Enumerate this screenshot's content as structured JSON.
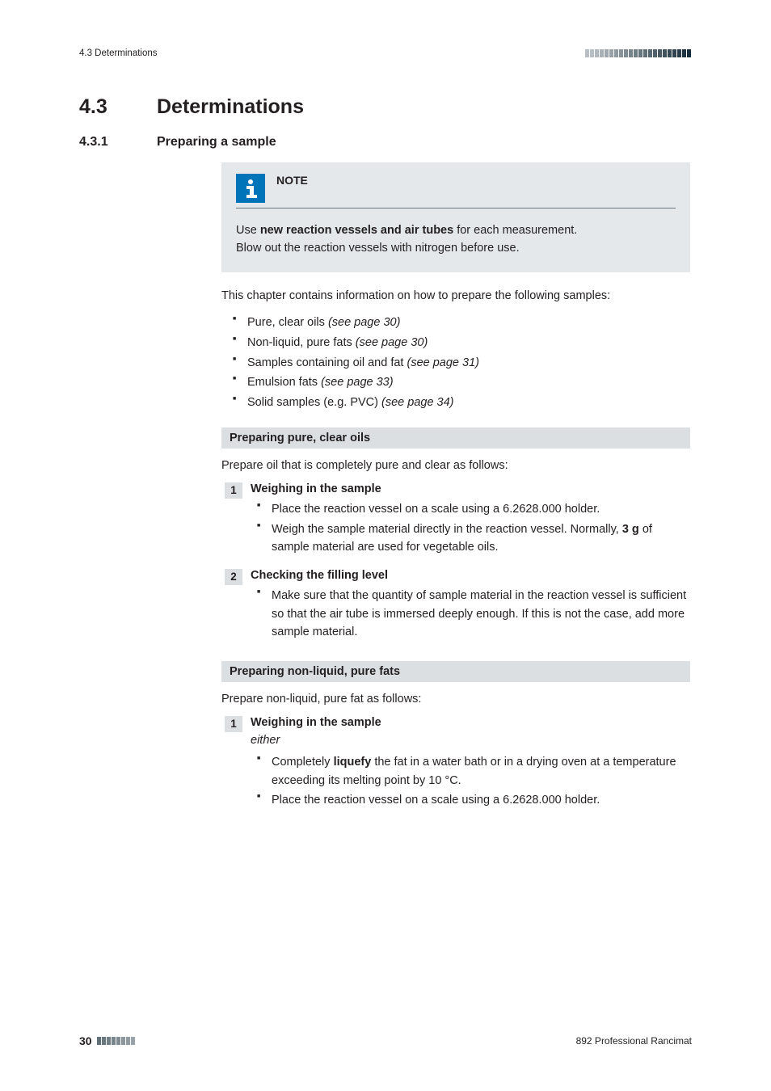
{
  "colors": {
    "text": "#231f20",
    "note_bg": "#e4e8ea",
    "note_icon_bg": "#0074b8",
    "subhead_bg": "#dcdfe2",
    "bar_gradient": [
      "#b8bfc4",
      "#b8bfc4",
      "#b0b8bd",
      "#a8b1b6",
      "#a0a9af",
      "#98a2a8",
      "#909ba1",
      "#88949a",
      "#808c93",
      "#78858d",
      "#707e86",
      "#68777f",
      "#606f78",
      "#586872",
      "#50616b",
      "#485964",
      "#40525e",
      "#384b57",
      "#304350",
      "#283c4a",
      "#203543",
      "#182d3c"
    ]
  },
  "header": {
    "running_left": "4.3 Determinations"
  },
  "h1": {
    "num": "4.3",
    "title": "Determinations"
  },
  "h2": {
    "num": "4.3.1",
    "title": "Preparing a sample"
  },
  "note": {
    "label": "NOTE",
    "line1_pre": "Use ",
    "line1_bold": "new reaction vessels and air tubes",
    "line1_post": " for each measurement.",
    "line2": "Blow out the reaction vessels with nitrogen before use."
  },
  "intro": "This chapter contains information on how to prepare the following samples:",
  "sample_list": [
    {
      "label": "Pure, clear oils ",
      "ref": "(see page 30)"
    },
    {
      "label": "Non-liquid, pure fats ",
      "ref": "(see page 30)"
    },
    {
      "label": "Samples containing oil and fat ",
      "ref": "(see page 31)"
    },
    {
      "label": "Emulsion fats ",
      "ref": "(see page 33)"
    },
    {
      "label": "Solid samples (e.g. PVC) ",
      "ref": "(see page 34)"
    }
  ],
  "section1": {
    "heading": "Preparing pure, clear oils",
    "intro": "Prepare oil that is completely pure and clear as follows:",
    "steps": [
      {
        "num": "1",
        "title": "Weighing in the sample",
        "items": [
          {
            "text": "Place the reaction vessel on a scale using a 6.2628.000 holder."
          },
          {
            "text_pre": "Weigh the sample material directly in the reaction vessel. Normally, ",
            "bold": "3 g",
            "text_post": " of sample material are used for vegetable oils."
          }
        ]
      },
      {
        "num": "2",
        "title": "Checking the filling level",
        "items": [
          {
            "text": "Make sure that the quantity of sample material in the reaction vessel is sufficient so that the air tube is immersed deeply enough. If this is not the case, add more sample material."
          }
        ]
      }
    ]
  },
  "section2": {
    "heading": "Preparing non-liquid, pure fats",
    "intro": "Prepare non-liquid, pure fat as follows:",
    "steps": [
      {
        "num": "1",
        "title": "Weighing in the sample",
        "subtitle": "either",
        "items": [
          {
            "text_pre": "Completely ",
            "bold": "liquefy",
            "text_post": " the fat in a water bath or in a drying oven at a temperature exceeding its melting point by 10 °C."
          },
          {
            "text": "Place the reaction vessel on a scale using a 6.2628.000 holder."
          }
        ]
      }
    ]
  },
  "footer": {
    "page": "30",
    "right": "892 Professional Rancimat",
    "footer_bar_gradient": [
      "#606f78",
      "#687780",
      "#707e87",
      "#78868e",
      "#808d95",
      "#88959c",
      "#909ca3",
      "#98a4aa"
    ]
  }
}
